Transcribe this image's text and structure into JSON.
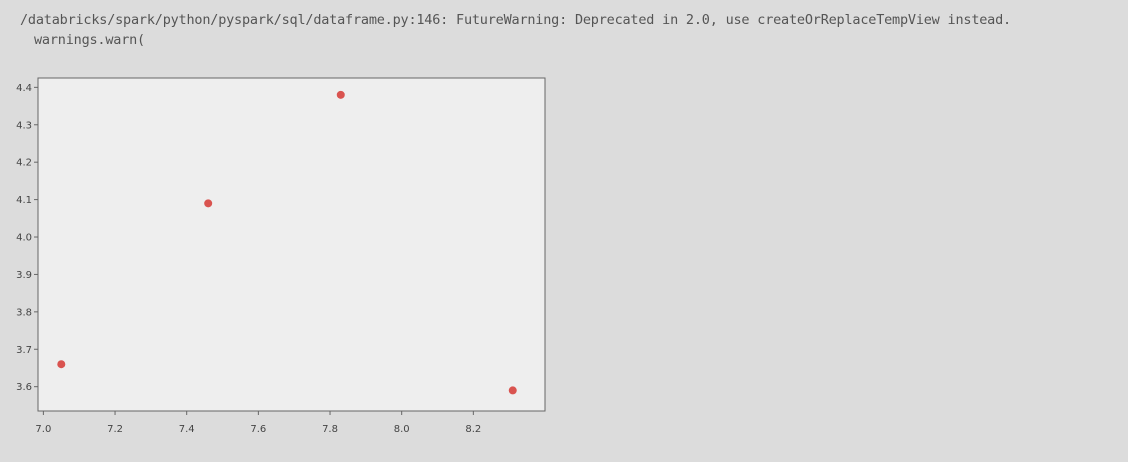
{
  "output": {
    "warning_line": "/databricks/spark/python/pyspark/sql/dataframe.py:146: FutureWarning: Deprecated in 2.0, use createOrReplaceTempView instead.",
    "warning_call": "warnings.warn("
  },
  "chart_data": {
    "type": "scatter",
    "title": "",
    "xlabel": "",
    "ylabel": "",
    "xlim": [
      6.985,
      8.4
    ],
    "ylim": [
      3.535,
      4.425
    ],
    "xticks": [
      "7.0",
      "7.2",
      "7.4",
      "7.6",
      "7.8",
      "8.0",
      "8.2"
    ],
    "yticks": [
      "4.4",
      "4.3",
      "4.2",
      "4.1",
      "4.0",
      "3.9",
      "3.8",
      "3.7",
      "3.6"
    ],
    "grid": false,
    "point_color": "#d9534f",
    "points": [
      {
        "x": 7.05,
        "y": 3.66
      },
      {
        "x": 7.46,
        "y": 4.09
      },
      {
        "x": 7.83,
        "y": 4.38
      },
      {
        "x": 8.31,
        "y": 3.59
      }
    ]
  }
}
